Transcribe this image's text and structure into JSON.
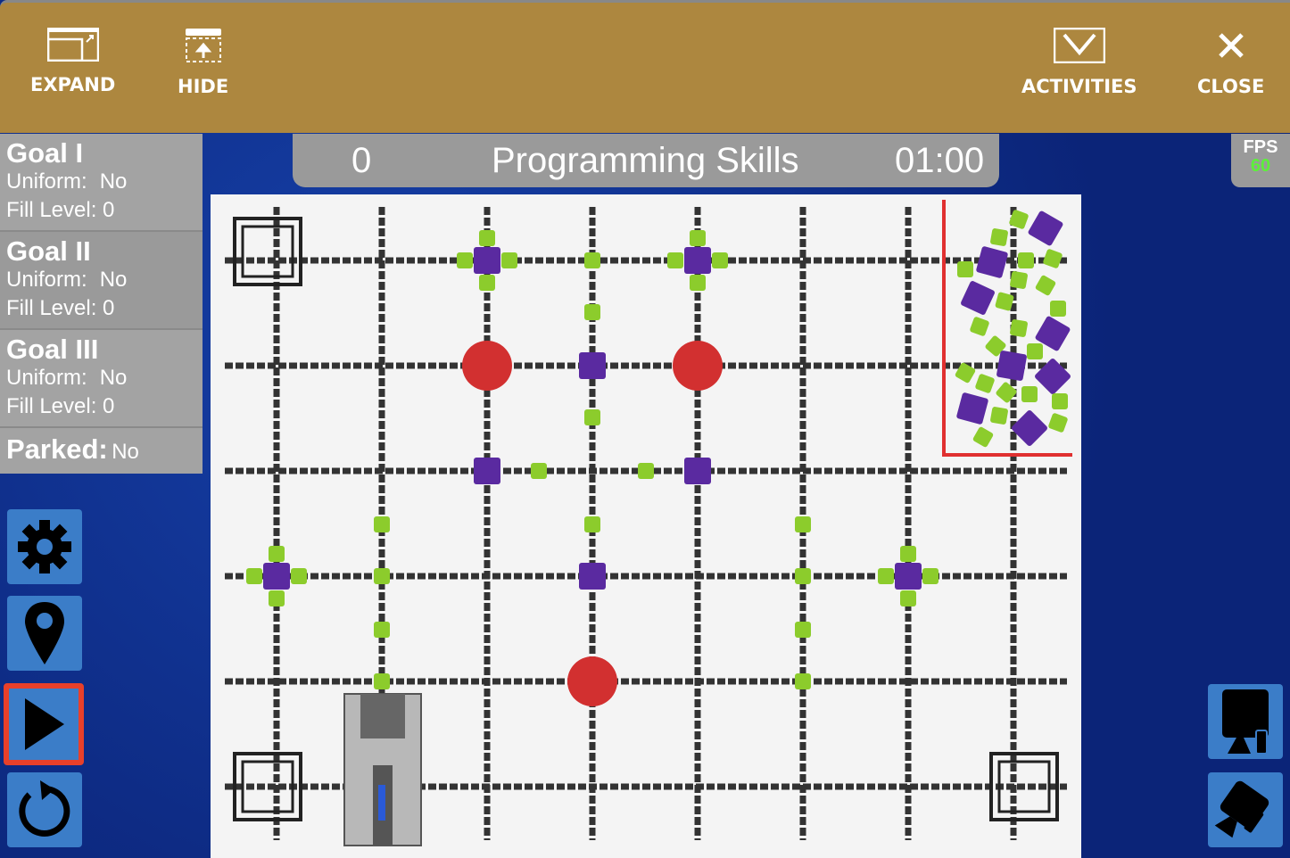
{
  "toolbar": {
    "expand": "EXPAND",
    "hide": "HIDE",
    "activities": "ACTIVITIES",
    "close": "CLOSE"
  },
  "goals": [
    {
      "title": "Goal I",
      "uniform_label": "Uniform:",
      "uniform": "No",
      "fill_label": "Fill Level:",
      "fill": "0"
    },
    {
      "title": "Goal II",
      "uniform_label": "Uniform:",
      "uniform": "No",
      "fill_label": "Fill Level:",
      "fill": "0"
    },
    {
      "title": "Goal III",
      "uniform_label": "Uniform:",
      "uniform": "No",
      "fill_label": "Fill Level:",
      "fill": "0"
    }
  ],
  "parked": {
    "label": "Parked:",
    "value": "No"
  },
  "scorebar": {
    "score": "0",
    "mode": "Programming Skills",
    "timer": "01:00"
  },
  "fps": {
    "label": "FPS",
    "value": "60"
  },
  "side_buttons": [
    "gear-icon",
    "location-pin-icon",
    "play-icon",
    "reset-icon"
  ],
  "camera_buttons": [
    "top-camera-icon",
    "angled-camera-icon"
  ],
  "colors": {
    "toolbar": "#ad873f",
    "panel": "#9a9a9a",
    "button": "#3b7dc8",
    "green": "#8ccc2c",
    "purple": "#5a2aa0",
    "red": "#d23030",
    "highlight": "#e8402a"
  }
}
